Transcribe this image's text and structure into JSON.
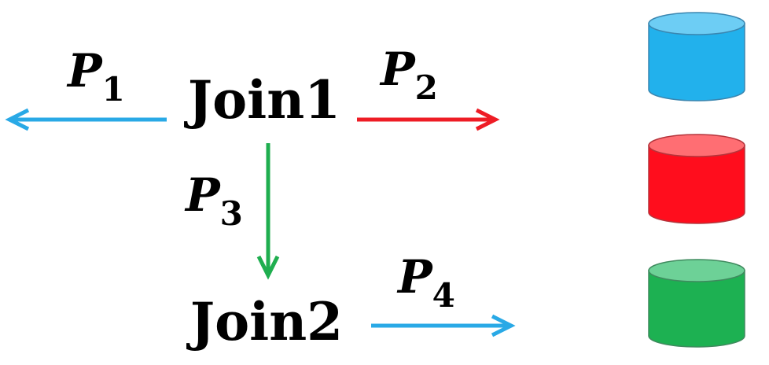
{
  "diagram": {
    "nodes": {
      "join1": {
        "label": "Join1"
      },
      "join2": {
        "label": "Join2"
      }
    },
    "edges": [
      {
        "id": "p1",
        "letter": "P",
        "sub": "1",
        "color": "#29a9e6"
      },
      {
        "id": "p2",
        "letter": "P",
        "sub": "2",
        "color": "#ee1c25"
      },
      {
        "id": "p3",
        "letter": "P",
        "sub": "3",
        "color": "#1fae4f"
      },
      {
        "id": "p4",
        "letter": "P",
        "sub": "4",
        "color": "#29a9e6"
      }
    ],
    "databases": [
      {
        "color_body": "#22b1ec",
        "color_top": "#6dcdf4"
      },
      {
        "color_body": "#ff0d1d",
        "color_top": "#ff6e73"
      },
      {
        "color_body": "#1db152",
        "color_top": "#6dd197"
      }
    ]
  }
}
